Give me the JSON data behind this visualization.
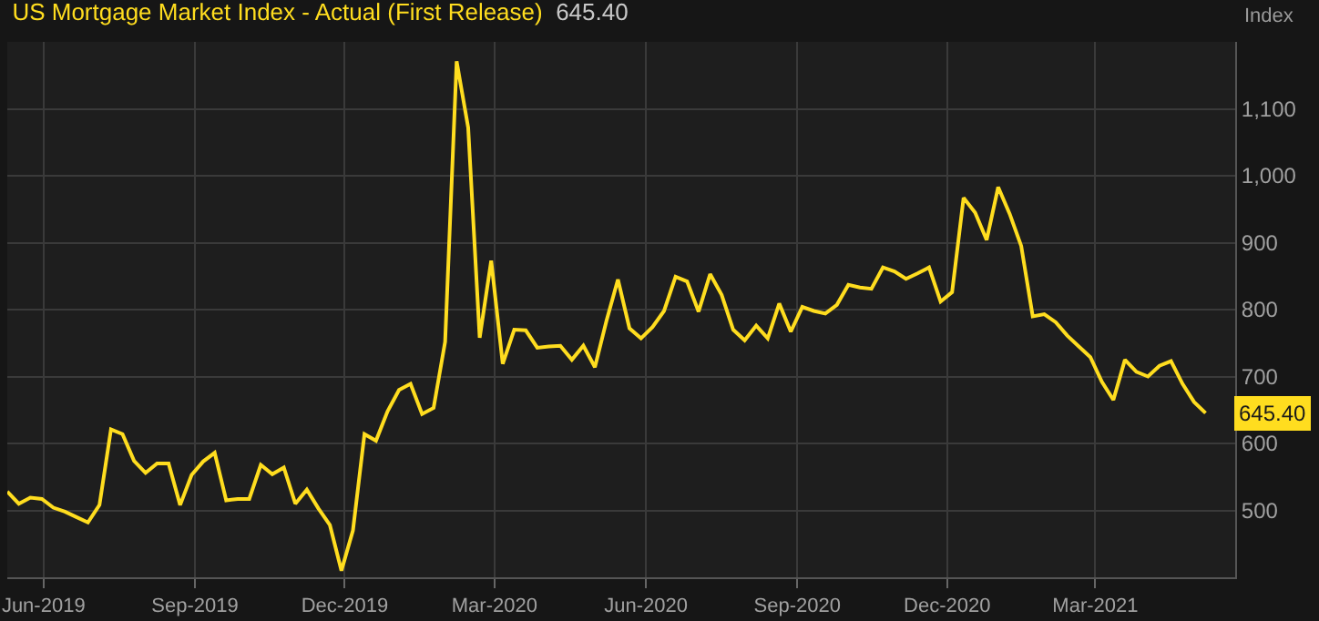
{
  "chart_data": {
    "type": "line",
    "title": "US Mortgage Market Index - Actual (First Release)",
    "subtitle": "645.40",
    "ylabel": "Index",
    "x": [
      "2019-05-10",
      "2019-05-17",
      "2019-05-24",
      "2019-05-31",
      "2019-06-07",
      "2019-06-14",
      "2019-06-21",
      "2019-06-28",
      "2019-07-05",
      "2019-07-12",
      "2019-07-19",
      "2019-07-26",
      "2019-08-02",
      "2019-08-09",
      "2019-08-16",
      "2019-08-23",
      "2019-08-30",
      "2019-09-06",
      "2019-09-13",
      "2019-09-20",
      "2019-09-27",
      "2019-10-04",
      "2019-10-11",
      "2019-10-18",
      "2019-10-25",
      "2019-11-01",
      "2019-11-08",
      "2019-11-15",
      "2019-11-22",
      "2019-11-29",
      "2019-12-06",
      "2019-12-13",
      "2019-12-20",
      "2019-12-27",
      "2020-01-03",
      "2020-01-10",
      "2020-01-17",
      "2020-01-24",
      "2020-01-31",
      "2020-02-07",
      "2020-02-14",
      "2020-02-21",
      "2020-02-28",
      "2020-03-06",
      "2020-03-13",
      "2020-03-20",
      "2020-03-27",
      "2020-04-03",
      "2020-04-10",
      "2020-04-17",
      "2020-04-24",
      "2020-05-01",
      "2020-05-08",
      "2020-05-15",
      "2020-05-22",
      "2020-05-29",
      "2020-06-05",
      "2020-06-12",
      "2020-06-19",
      "2020-06-26",
      "2020-07-03",
      "2020-07-10",
      "2020-07-17",
      "2020-07-24",
      "2020-07-31",
      "2020-08-07",
      "2020-08-14",
      "2020-08-21",
      "2020-08-28",
      "2020-09-04",
      "2020-09-11",
      "2020-09-18",
      "2020-09-25",
      "2020-10-02",
      "2020-10-09",
      "2020-10-16",
      "2020-10-23",
      "2020-10-30",
      "2020-11-06",
      "2020-11-13",
      "2020-11-20",
      "2020-11-27",
      "2020-12-04",
      "2020-12-11",
      "2020-12-18",
      "2020-12-25",
      "2021-01-01",
      "2021-01-08",
      "2021-01-15",
      "2021-01-22",
      "2021-01-29",
      "2021-02-05",
      "2021-02-12",
      "2021-02-19",
      "2021-02-26",
      "2021-03-05",
      "2021-03-12",
      "2021-03-19",
      "2021-03-26",
      "2021-04-02",
      "2021-04-09",
      "2021-04-16",
      "2021-04-23",
      "2021-04-30",
      "2021-05-07"
    ],
    "series": [
      {
        "color": "#ffdd1f",
        "values": [
          528,
          510,
          519,
          517,
          504,
          498,
          490,
          482,
          508,
          621,
          614,
          574,
          556,
          570,
          570,
          508,
          553,
          573,
          586,
          515,
          517,
          517,
          568,
          554,
          564,
          510,
          531,
          503,
          478,
          410,
          470,
          614,
          604,
          648,
          680,
          689,
          644,
          653,
          752,
          1171,
          1072,
          758,
          873,
          719,
          770,
          769,
          743,
          745,
          746,
          725,
          746,
          714,
          783,
          845,
          772,
          757,
          774,
          798,
          849,
          842,
          797,
          853,
          822,
          770,
          754,
          776,
          757,
          809,
          767,
          804,
          798,
          794,
          807,
          837,
          833,
          831,
          863,
          857,
          846,
          854,
          863,
          812,
          826,
          967,
          945,
          904,
          983,
          943,
          895,
          790,
          793,
          781,
          761,
          745,
          729,
          692,
          665,
          725,
          707,
          700,
          716,
          723,
          689,
          662,
          645.4
        ]
      }
    ],
    "annotations": [
      {
        "text": "645.40",
        "x": "2021-05-07",
        "y": 645.4
      }
    ],
    "xlim": [
      "2019-05-10",
      "2021-05-25"
    ],
    "xticks": [
      {
        "value": "2019-06-01",
        "label": "Jun-2019"
      },
      {
        "value": "2019-09-01",
        "label": "Sep-2019"
      },
      {
        "value": "2019-12-01",
        "label": "Dec-2019"
      },
      {
        "value": "2020-03-01",
        "label": "Mar-2020"
      },
      {
        "value": "2020-06-01",
        "label": "Jun-2020"
      },
      {
        "value": "2020-09-01",
        "label": "Sep-2020"
      },
      {
        "value": "2020-12-01",
        "label": "Dec-2020"
      },
      {
        "value": "2021-03-01",
        "label": "Mar-2021"
      }
    ],
    "ylim": [
      400,
      1200
    ],
    "yticks": [
      500,
      600,
      700,
      800,
      900,
      {
        "value": 1000,
        "label": "1,000"
      },
      {
        "value": 1100,
        "label": "1,100"
      }
    ],
    "grid": true,
    "marker": "none",
    "line_style": "solid"
  }
}
